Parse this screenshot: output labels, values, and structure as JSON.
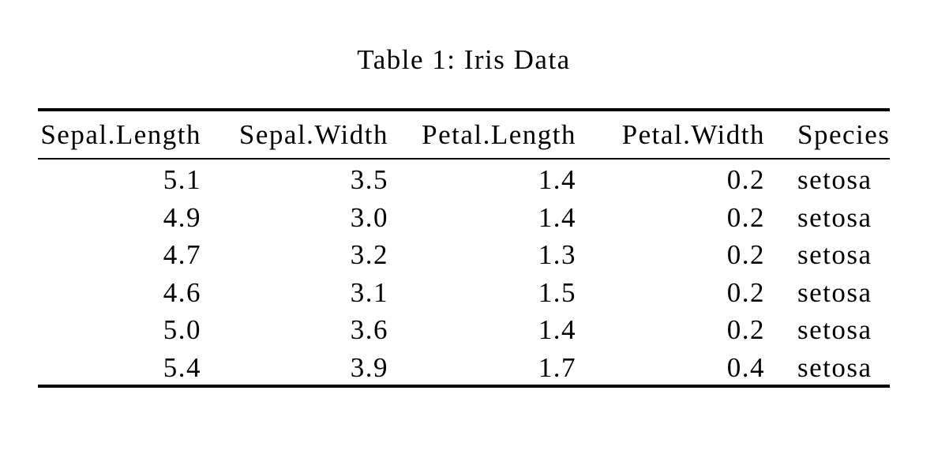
{
  "caption": "Table 1: Iris Data",
  "table": {
    "columns": [
      {
        "key": "sepal-length",
        "label": "Sepal.Length",
        "align": "right"
      },
      {
        "key": "sepal-width",
        "label": "Sepal.Width",
        "align": "right"
      },
      {
        "key": "petal-length",
        "label": "Petal.Length",
        "align": "right"
      },
      {
        "key": "petal-width",
        "label": "Petal.Width",
        "align": "right"
      },
      {
        "key": "species",
        "label": "Species",
        "align": "left"
      }
    ],
    "rows": [
      [
        "5.1",
        "3.5",
        "1.4",
        "0.2",
        "setosa"
      ],
      [
        "4.9",
        "3.0",
        "1.4",
        "0.2",
        "setosa"
      ],
      [
        "4.7",
        "3.2",
        "1.3",
        "0.2",
        "setosa"
      ],
      [
        "4.6",
        "3.1",
        "1.5",
        "0.2",
        "setosa"
      ],
      [
        "5.0",
        "3.6",
        "1.4",
        "0.2",
        "setosa"
      ],
      [
        "5.4",
        "3.9",
        "1.7",
        "0.4",
        "setosa"
      ]
    ]
  },
  "colors": {
    "text": "#000000",
    "background": "#ffffff",
    "rules": "#000000"
  }
}
